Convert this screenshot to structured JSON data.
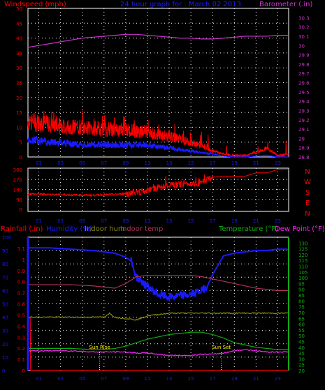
{
  "header": {
    "left_label": "Windspeed (mph)",
    "center_label": "24 hour graph for : March 02 2013",
    "right_label": "Barometer (.in)"
  },
  "colors": {
    "background": "#000000",
    "windspeed_gust": "#ff0000",
    "windspeed_avg": "#1a1aff",
    "barometer": "#cc33cc",
    "direction": "#ff0000",
    "rainfall": "#ff0000",
    "humidity": "#1a1aff",
    "indoor_hum": "#8a8a10",
    "indoor_temp": "#b03060",
    "temperature": "#11aa11",
    "dew_point": "#ff22ff",
    "grid": "#ffffff",
    "axis_left_blue": "#1a1aff",
    "axis_right_green": "#11aa11",
    "sun_markers": "#ffffff",
    "sun_label": "#ffff00"
  },
  "chart_data": [
    {
      "type": "line",
      "id": "wind_baro",
      "title": "24 hour graph for : March 02 2013",
      "ylabel_left": "Windspeed (mph)",
      "ylabel_right": "Barometer (.in)",
      "ylim_left": [
        0,
        50
      ],
      "ylim_right": [
        28.8,
        30.4
      ],
      "yticks_left": [
        "0",
        "5",
        "10",
        "15",
        "20",
        "25",
        "30",
        "35",
        "40",
        "45",
        "50"
      ],
      "yticks_right": [
        "28.8",
        "28.9",
        "29",
        "29.1",
        "29.2",
        "29.3",
        "29.4",
        "29.5",
        "29.6",
        "29.7",
        "29.8",
        "29.9",
        "30",
        "30.1",
        "30.2",
        "30.3"
      ],
      "x_ticks": [
        "01",
        "03",
        "05",
        "07",
        "09",
        "11",
        "13",
        "15",
        "17",
        "19",
        "21",
        "23"
      ],
      "grid": true,
      "series": [
        {
          "name": "Windspeed (mph)",
          "role": "gust",
          "axis": "left",
          "x": [
            0,
            1,
            2,
            3,
            4,
            5,
            6,
            7,
            8,
            9,
            10,
            11,
            12,
            13,
            14,
            15,
            16,
            17,
            18,
            19,
            20,
            21,
            22,
            23,
            24
          ],
          "values": [
            12,
            11.5,
            11,
            10.5,
            10,
            10,
            9.5,
            9.5,
            9,
            9,
            8.5,
            8.5,
            7.5,
            7,
            6,
            5,
            3.5,
            2,
            1,
            0.5,
            0.5,
            1.5,
            3,
            0.5,
            1
          ]
        },
        {
          "role": "average",
          "axis": "left",
          "x": [
            0,
            1,
            2,
            3,
            4,
            5,
            6,
            7,
            8,
            9,
            10,
            11,
            12,
            13,
            14,
            15,
            16,
            17,
            18,
            19,
            20,
            21,
            22,
            23,
            24
          ],
          "values": [
            6,
            5.5,
            5,
            5,
            4.5,
            4,
            4,
            4,
            4,
            4,
            4,
            4,
            3.5,
            3,
            2.5,
            2,
            1.5,
            1,
            0.3,
            0,
            0,
            0.3,
            0.5,
            0,
            0
          ]
        },
        {
          "name": "Barometer (.in)",
          "axis": "right",
          "x": [
            0,
            1,
            2,
            3,
            4,
            5,
            6,
            7,
            8,
            9,
            10,
            11,
            12,
            13,
            14,
            15,
            16,
            17,
            18,
            19,
            20,
            21,
            22,
            23,
            24
          ],
          "values": [
            29.98,
            30.0,
            30.02,
            30.04,
            30.06,
            30.08,
            30.09,
            30.1,
            30.11,
            30.12,
            30.12,
            30.11,
            30.1,
            30.09,
            30.08,
            30.08,
            30.07,
            30.07,
            30.08,
            30.09,
            30.1,
            30.1,
            30.1,
            30.11,
            30.11
          ]
        }
      ]
    },
    {
      "type": "line",
      "id": "direction",
      "ylim": [
        0,
        360
      ],
      "yticks": [
        "0",
        "90",
        "180",
        "270",
        "360"
      ],
      "compass_labels": [
        "N",
        "W",
        "S",
        "E",
        "N"
      ],
      "x_ticks": [
        "01",
        "03",
        "05",
        "07",
        "09",
        "11",
        "13",
        "15",
        "17",
        "19",
        "21",
        "23"
      ],
      "grid": true,
      "series": [
        {
          "role": "wind_direction",
          "x": [
            0,
            2,
            4,
            6,
            8,
            10,
            11,
            12,
            13,
            14,
            15,
            16,
            17,
            18,
            19,
            20,
            21,
            22,
            23,
            24
          ],
          "values": [
            140,
            135,
            130,
            128,
            135,
            150,
            170,
            200,
            215,
            225,
            235,
            240,
            290,
            300,
            300,
            300,
            330,
            330,
            360,
            360
          ]
        }
      ]
    },
    {
      "type": "line",
      "id": "rain_hum_temp",
      "labels": {
        "rainfall": "Rainfall (.in)",
        "humidity": "Humidity (%)",
        "indoor_hum": "Indoor hum",
        "indoor_temp": "Indoor temp",
        "temperature": "Temperature (°F)",
        "dew_point": "Dew Point (°F)"
      },
      "ylim_rain": [
        0,
        1.2
      ],
      "ylim_hum": [
        0,
        100
      ],
      "ylim_temp": [
        20,
        135
      ],
      "yticks_hum": [
        "0",
        "10",
        "20",
        "30",
        "40",
        "50",
        "60",
        "70",
        "80",
        "90",
        "100"
      ],
      "yticks_rain": [
        "0",
        "0.1",
        "0.2",
        "0.3",
        "0.4",
        "0.5",
        "0.6",
        "0.7",
        "0.8",
        "0.9",
        "1",
        "1.1"
      ],
      "yticks_temp": [
        "20",
        "25",
        "30",
        "35",
        "40",
        "45",
        "50",
        "55",
        "60",
        "65",
        "70",
        "75",
        "80",
        "85",
        "90",
        "95",
        "100",
        "105",
        "110",
        "115",
        "120",
        "125",
        "130"
      ],
      "x_ticks": [
        "01",
        "03",
        "05",
        "07",
        "09",
        "11",
        "13",
        "15",
        "17",
        "19",
        "21",
        "23"
      ],
      "grid": true,
      "series": [
        {
          "name": "Rainfall (.in)",
          "axis": "rain",
          "x": [
            0,
            0.2,
            0.25,
            24
          ],
          "values": [
            0.48,
            0.48,
            0,
            0
          ]
        },
        {
          "name": "Humidity (%)",
          "axis": "hum",
          "x": [
            0,
            2,
            4,
            6,
            7,
            8,
            9,
            9.5,
            10,
            11,
            12,
            13,
            14,
            15,
            16,
            16.5,
            17,
            18,
            19,
            20,
            21,
            22,
            23,
            24
          ],
          "values": [
            92,
            92,
            91,
            90,
            89,
            88,
            85,
            82,
            70,
            63,
            57,
            55,
            56,
            57,
            60,
            63,
            72,
            86,
            88,
            89,
            90,
            90,
            91,
            91
          ]
        },
        {
          "name": "Indoor hum",
          "axis": "hum",
          "x": [
            0,
            4,
            6,
            7,
            7.5,
            8,
            9,
            10,
            11,
            12,
            13,
            14,
            15,
            16,
            18,
            20,
            22,
            24
          ],
          "values": [
            40,
            40,
            40,
            40,
            43,
            40,
            39,
            38,
            41,
            42,
            43,
            43,
            43,
            43,
            43,
            43,
            43,
            43
          ]
        },
        {
          "name": "Indoor temp",
          "axis": "temp",
          "x": [
            0,
            2,
            4,
            6,
            7,
            8,
            9,
            10,
            11,
            12,
            13,
            14,
            15,
            16,
            17,
            18,
            19,
            20,
            21,
            22,
            23,
            24
          ],
          "values": [
            94,
            94,
            94,
            93,
            92,
            91,
            95,
            101,
            102,
            102,
            102,
            102,
            102,
            101,
            99,
            97,
            95,
            93,
            91,
            90,
            89,
            89
          ]
        },
        {
          "name": "Temperature (°F)",
          "axis": "temp",
          "x": [
            0,
            2,
            4,
            6,
            7,
            8,
            9,
            10,
            11,
            12,
            13,
            14,
            15,
            16,
            17,
            18,
            19,
            20,
            21,
            22,
            23,
            24
          ],
          "values": [
            39,
            39,
            39,
            38,
            38,
            39,
            41,
            44,
            47,
            49,
            51,
            52,
            53,
            53,
            51,
            48,
            44,
            42,
            40,
            39,
            38,
            38
          ]
        },
        {
          "name": "Dew Point (°F)",
          "axis": "temp",
          "x": [
            0,
            2,
            4,
            6,
            7,
            8,
            9,
            10,
            11,
            12,
            13,
            14,
            15,
            16,
            17,
            18,
            19,
            20,
            21,
            22,
            23,
            24
          ],
          "values": [
            37,
            37,
            37,
            36,
            36,
            36,
            36,
            35,
            35,
            34,
            33,
            33,
            33,
            34,
            34,
            35,
            37,
            38,
            37,
            36,
            36,
            36
          ]
        }
      ],
      "annotations": [
        {
          "label": "Sun Rise",
          "x": 6.6
        },
        {
          "label": "Sun Set",
          "x": 17.8
        }
      ]
    }
  ]
}
